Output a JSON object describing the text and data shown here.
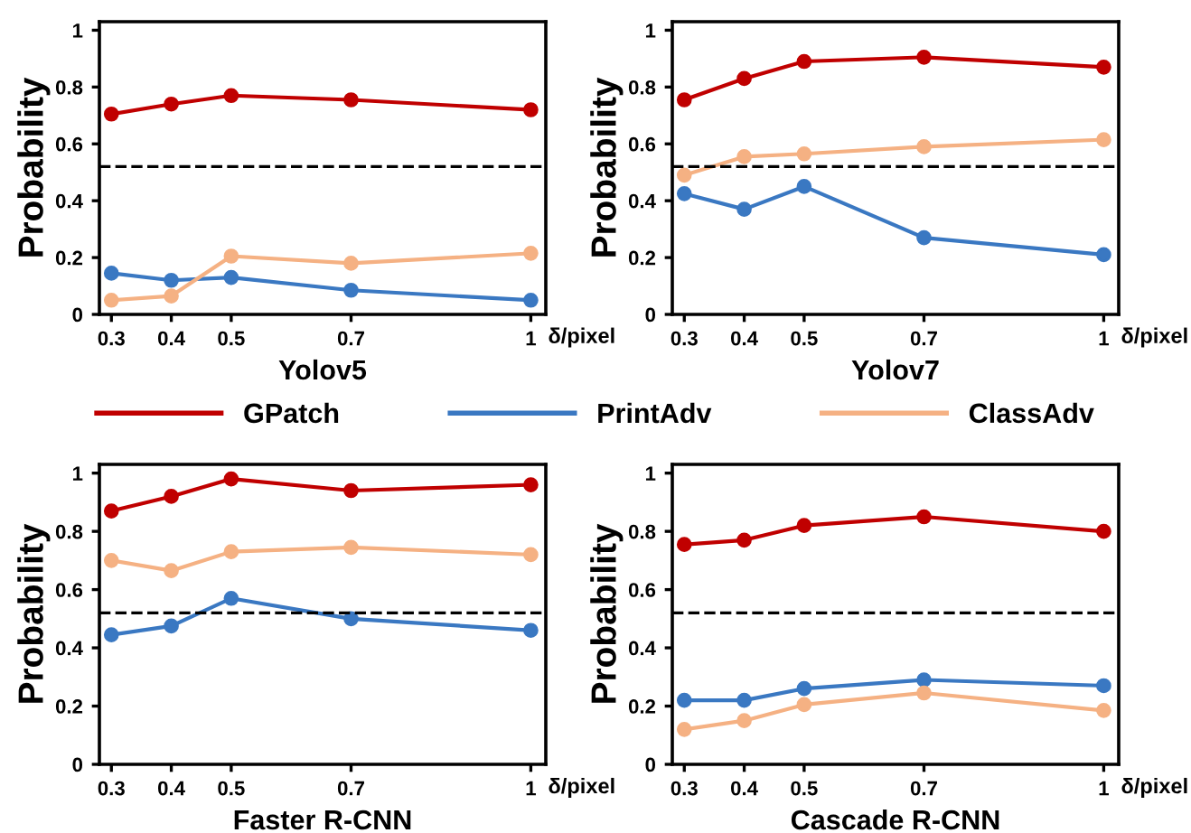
{
  "chart_data": [
    {
      "type": "line",
      "title": "Yolov5",
      "xlabel": "δ/pixel",
      "ylabel": "Probability",
      "x": [
        0.3,
        0.4,
        0.5,
        0.7,
        1
      ],
      "xlim": [
        0.28,
        1.025
      ],
      "xticks": [
        0.3,
        0.4,
        0.5,
        0.7,
        1
      ],
      "ylim": [
        0,
        1.03
      ],
      "yticks": [
        0,
        0.2,
        0.4,
        0.6,
        0.8,
        1
      ],
      "marker": "circle",
      "line_style": "solid",
      "legend": "bottom",
      "grid": false,
      "ref_lines": [
        {
          "axis": "y",
          "value": 0.52,
          "color": "#000000",
          "line_style": "dashed"
        }
      ],
      "series": [
        {
          "name": "GPatch",
          "color": "#c00000",
          "values": [
            0.705,
            0.74,
            0.77,
            0.755,
            0.72
          ]
        },
        {
          "name": "PrintAdv",
          "color": "#3a78c2",
          "values": [
            0.145,
            0.12,
            0.13,
            0.085,
            0.05
          ]
        },
        {
          "name": "ClassAdv",
          "color": "#f5b183",
          "values": [
            0.05,
            0.065,
            0.205,
            0.18,
            0.215
          ]
        }
      ]
    },
    {
      "type": "line",
      "title": "Yolov7",
      "xlabel": "δ/pixel",
      "ylabel": "Probability",
      "x": [
        0.3,
        0.4,
        0.5,
        0.7,
        1
      ],
      "xlim": [
        0.28,
        1.025
      ],
      "xticks": [
        0.3,
        0.4,
        0.5,
        0.7,
        1
      ],
      "ylim": [
        0,
        1.03
      ],
      "yticks": [
        0,
        0.2,
        0.4,
        0.6,
        0.8,
        1
      ],
      "marker": "circle",
      "line_style": "solid",
      "grid": false,
      "ref_lines": [
        {
          "axis": "y",
          "value": 0.52,
          "color": "#000000",
          "line_style": "dashed"
        }
      ],
      "series": [
        {
          "color": "#c00000",
          "values": [
            0.755,
            0.83,
            0.89,
            0.905,
            0.87
          ]
        },
        {
          "color": "#3a78c2",
          "values": [
            0.425,
            0.37,
            0.45,
            0.27,
            0.21
          ]
        },
        {
          "color": "#f5b183",
          "values": [
            0.49,
            0.555,
            0.565,
            0.59,
            0.615
          ]
        }
      ]
    },
    {
      "type": "line",
      "title": "Faster R-CNN",
      "xlabel": "δ/pixel",
      "ylabel": "Probability",
      "x": [
        0.3,
        0.4,
        0.5,
        0.7,
        1
      ],
      "xlim": [
        0.28,
        1.025
      ],
      "xticks": [
        0.3,
        0.4,
        0.5,
        0.7,
        1
      ],
      "ylim": [
        0,
        1.03
      ],
      "yticks": [
        0,
        0.2,
        0.4,
        0.6,
        0.8,
        1
      ],
      "marker": "circle",
      "line_style": "solid",
      "grid": false,
      "ref_lines": [
        {
          "axis": "y",
          "value": 0.52,
          "color": "#000000",
          "line_style": "dashed"
        }
      ],
      "series": [
        {
          "color": "#c00000",
          "values": [
            0.87,
            0.92,
            0.98,
            0.94,
            0.96
          ]
        },
        {
          "color": "#3a78c2",
          "values": [
            0.445,
            0.475,
            0.57,
            0.5,
            0.46
          ]
        },
        {
          "color": "#f5b183",
          "values": [
            0.7,
            0.665,
            0.73,
            0.745,
            0.72
          ]
        }
      ]
    },
    {
      "type": "line",
      "title": "Cascade R-CNN",
      "xlabel": "δ/pixel",
      "ylabel": "Probability",
      "x": [
        0.3,
        0.4,
        0.5,
        0.7,
        1
      ],
      "xlim": [
        0.28,
        1.025
      ],
      "xticks": [
        0.3,
        0.4,
        0.5,
        0.7,
        1
      ],
      "ylim": [
        0,
        1.03
      ],
      "yticks": [
        0,
        0.2,
        0.4,
        0.6,
        0.8,
        1
      ],
      "marker": "circle",
      "line_style": "solid",
      "grid": false,
      "ref_lines": [
        {
          "axis": "y",
          "value": 0.52,
          "color": "#000000",
          "line_style": "dashed"
        }
      ],
      "series": [
        {
          "color": "#c00000",
          "values": [
            0.755,
            0.77,
            0.82,
            0.85,
            0.8
          ]
        },
        {
          "color": "#3a78c2",
          "values": [
            0.22,
            0.22,
            0.26,
            0.29,
            0.27
          ]
        },
        {
          "color": "#f5b183",
          "values": [
            0.12,
            0.15,
            0.205,
            0.245,
            0.185
          ]
        }
      ]
    }
  ]
}
